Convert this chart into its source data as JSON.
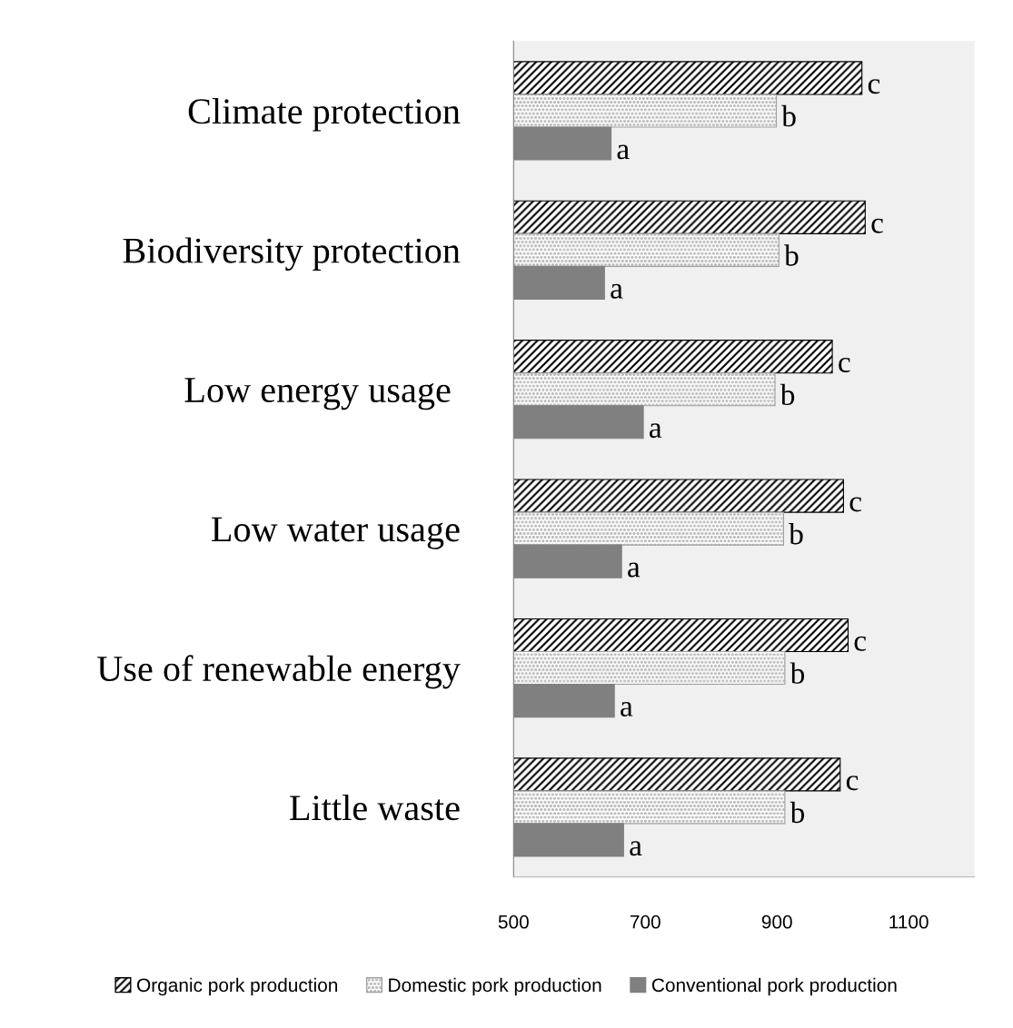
{
  "chart_data": {
    "type": "bar",
    "orientation": "horizontal",
    "categories": [
      "Climate protection",
      "Biodiversity protection",
      "Low energy usage ",
      "Low water usage",
      "Use of renewable energy",
      "Little waste"
    ],
    "series": [
      {
        "name": "Organic pork production",
        "color": "#000000",
        "values": [
          1029,
          1034,
          984,
          1001,
          1008,
          996
        ],
        "value_labels": [
          "c",
          "c",
          "c",
          "c",
          "c",
          "c"
        ]
      },
      {
        "name": "Domestic pork production",
        "color": "#a0a0a0",
        "values": [
          899,
          903,
          897,
          910,
          912,
          912
        ],
        "value_labels": [
          "b",
          "b",
          "b",
          "b",
          "b",
          "b"
        ]
      },
      {
        "name": "Conventional pork production",
        "color": "#808080",
        "values": [
          648,
          638,
          697,
          664,
          653,
          667
        ],
        "value_labels": [
          "a",
          "a",
          "a",
          "a",
          "a",
          "a"
        ]
      }
    ],
    "xlim": [
      500,
      1200
    ],
    "xticks": [
      500,
      700,
      900,
      1100
    ],
    "grid": false,
    "legend": "bottom"
  }
}
